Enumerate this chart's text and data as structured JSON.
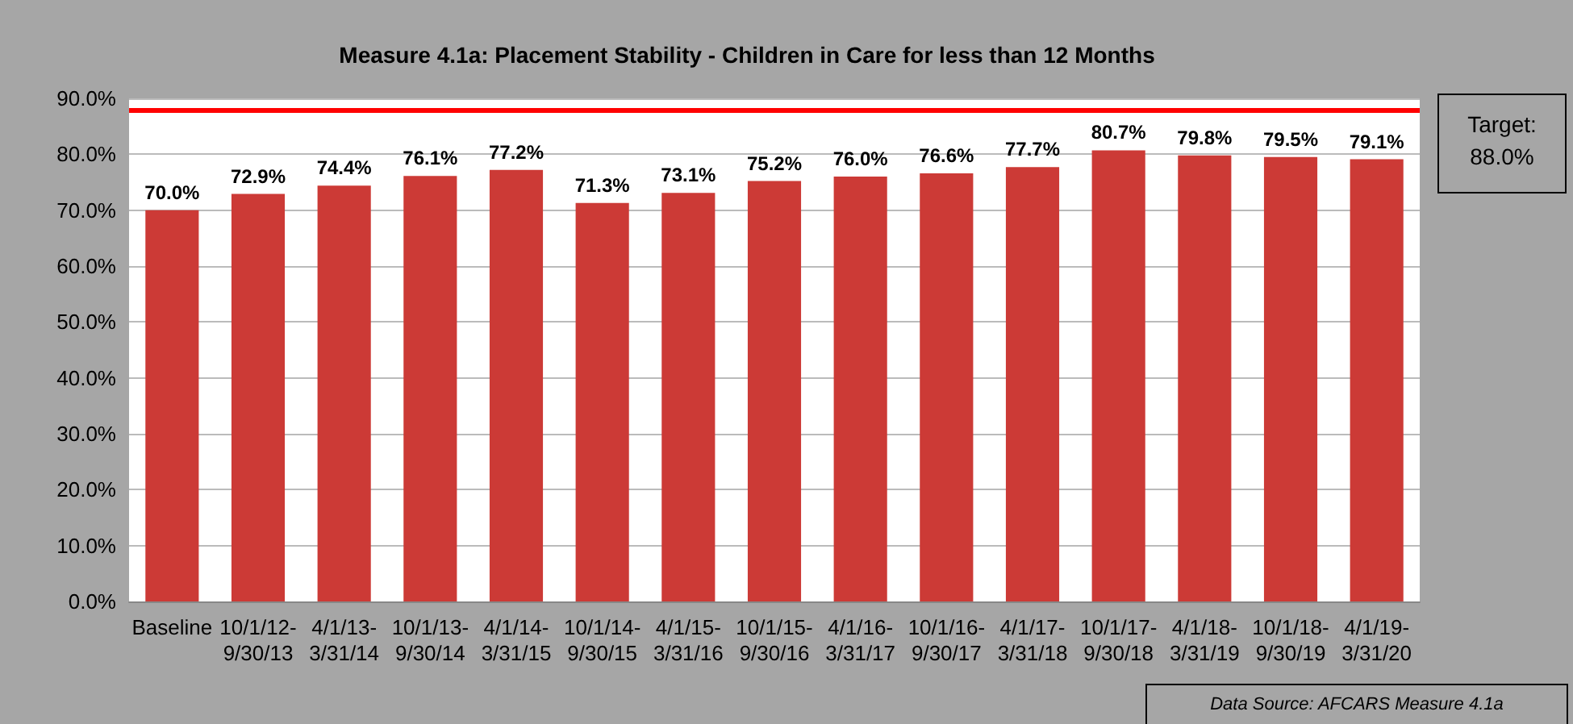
{
  "chart_data": {
    "type": "bar",
    "title": "Measure 4.1a: Placement Stability - Children in Care for less than 12 Months",
    "categories": [
      "Baseline",
      "10/1/12-9/30/13",
      "4/1/13-3/31/14",
      "10/1/13-9/30/14",
      "4/1/14-3/31/15",
      "10/1/14-9/30/15",
      "4/1/15-3/31/16",
      "10/1/15-9/30/16",
      "4/1/16-3/31/17",
      "10/1/16-9/30/17",
      "4/1/17-3/31/18",
      "10/1/17-9/30/18",
      "4/1/18-3/31/19",
      "10/1/18-9/30/19",
      "4/1/19-3/31/20"
    ],
    "values": [
      70.0,
      72.9,
      74.4,
      76.1,
      77.2,
      71.3,
      73.1,
      75.2,
      76.0,
      76.6,
      77.7,
      80.7,
      79.8,
      79.5,
      79.1
    ],
    "value_labels": [
      "70.0%",
      "72.9%",
      "74.4%",
      "76.1%",
      "77.2%",
      "71.3%",
      "73.1%",
      "75.2%",
      "76.0%",
      "76.6%",
      "77.7%",
      "80.7%",
      "79.8%",
      "79.5%",
      "79.1%"
    ],
    "color": "#cc3a36",
    "ylim": [
      0,
      90
    ],
    "yticks": [
      {
        "value": 0,
        "label": "0.0%"
      },
      {
        "value": 10,
        "label": "10.0%"
      },
      {
        "value": 20,
        "label": "20.0%"
      },
      {
        "value": 30,
        "label": "30.0%"
      },
      {
        "value": 40,
        "label": "40.0%"
      },
      {
        "value": 50,
        "label": "50.0%"
      },
      {
        "value": 60,
        "label": "60.0%"
      },
      {
        "value": 70,
        "label": "70.0%"
      },
      {
        "value": 80,
        "label": "80.0%"
      },
      {
        "value": 90,
        "label": "90.0%"
      }
    ],
    "grid": "y",
    "ref_lines": [
      {
        "axis": "y",
        "value": 88,
        "label": "Target: 88.0%",
        "color": "#ff0000"
      }
    ],
    "annotations": [
      "Data Source: AFCARS Measure 4.1a"
    ]
  }
}
